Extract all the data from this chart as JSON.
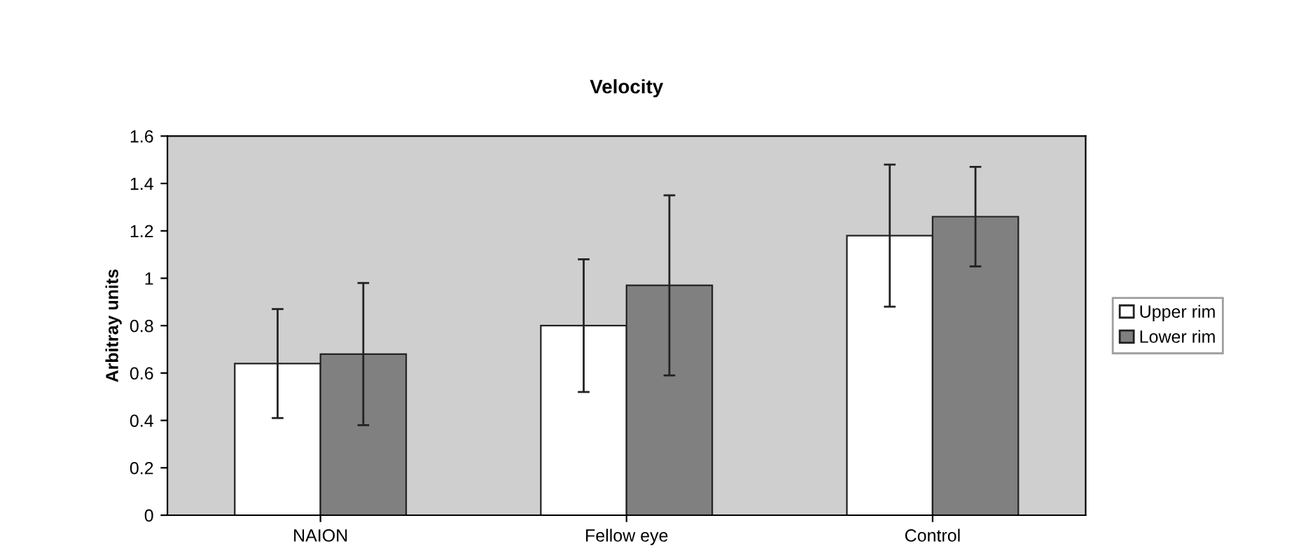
{
  "chart_data": {
    "type": "bar",
    "title": "Velocity",
    "ylabel": "Arbitray units",
    "categories": [
      "NAION",
      "Fellow eye",
      "Control"
    ],
    "series": [
      {
        "name": "Upper rim",
        "color": "#ffffff",
        "values": [
          0.64,
          0.8,
          1.18
        ],
        "errors": [
          0.23,
          0.28,
          0.3
        ]
      },
      {
        "name": "Lower rim",
        "color": "#808080",
        "values": [
          0.68,
          0.97,
          1.26
        ],
        "errors": [
          0.3,
          0.38,
          0.21
        ]
      }
    ],
    "ylim": [
      0,
      1.6
    ],
    "yticks": [
      0,
      0.2,
      0.4,
      0.6,
      0.8,
      1,
      1.2,
      1.4,
      1.6
    ],
    "grid": false,
    "legend": "right"
  }
}
